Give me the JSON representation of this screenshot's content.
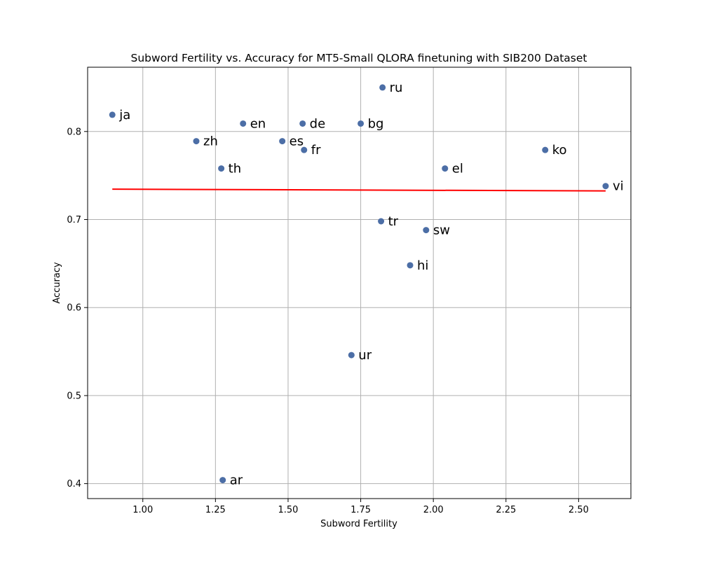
{
  "chart_data": {
    "type": "scatter",
    "title": "Subword Fertility vs. Accuracy for MT5-Small QLORA finetuning with SIB200 Dataset",
    "xlabel": "Subword Fertility",
    "ylabel": "Accuracy",
    "xlim": [
      0.81,
      2.68
    ],
    "ylim": [
      0.383,
      0.873
    ],
    "xticks": [
      "1.00",
      "1.25",
      "1.50",
      "1.75",
      "2.00",
      "2.25",
      "2.50"
    ],
    "yticks": [
      "0.4",
      "0.5",
      "0.6",
      "0.7",
      "0.8"
    ],
    "grid": true,
    "colors": {
      "points": "#4c6ea6",
      "trend": "#ff0000",
      "grid": "#b0b0b0"
    },
    "points": [
      {
        "label": "ja",
        "x": 0.895,
        "y": 0.819
      },
      {
        "label": "zh",
        "x": 1.184,
        "y": 0.789
      },
      {
        "label": "th",
        "x": 1.27,
        "y": 0.758
      },
      {
        "label": "ar",
        "x": 1.275,
        "y": 0.404
      },
      {
        "label": "en",
        "x": 1.345,
        "y": 0.809
      },
      {
        "label": "es",
        "x": 1.48,
        "y": 0.789
      },
      {
        "label": "de",
        "x": 1.55,
        "y": 0.809
      },
      {
        "label": "fr",
        "x": 1.555,
        "y": 0.779
      },
      {
        "label": "ur",
        "x": 1.718,
        "y": 0.546
      },
      {
        "label": "bg",
        "x": 1.75,
        "y": 0.809
      },
      {
        "label": "tr",
        "x": 1.82,
        "y": 0.698
      },
      {
        "label": "ru",
        "x": 1.825,
        "y": 0.85
      },
      {
        "label": "hi",
        "x": 1.92,
        "y": 0.648
      },
      {
        "label": "sw",
        "x": 1.975,
        "y": 0.688
      },
      {
        "label": "el",
        "x": 2.04,
        "y": 0.758
      },
      {
        "label": "ko",
        "x": 2.385,
        "y": 0.779
      },
      {
        "label": "vi",
        "x": 2.593,
        "y": 0.738
      }
    ],
    "trend_line": {
      "x": [
        0.895,
        2.593
      ],
      "y": [
        0.7345,
        0.7325
      ]
    }
  }
}
